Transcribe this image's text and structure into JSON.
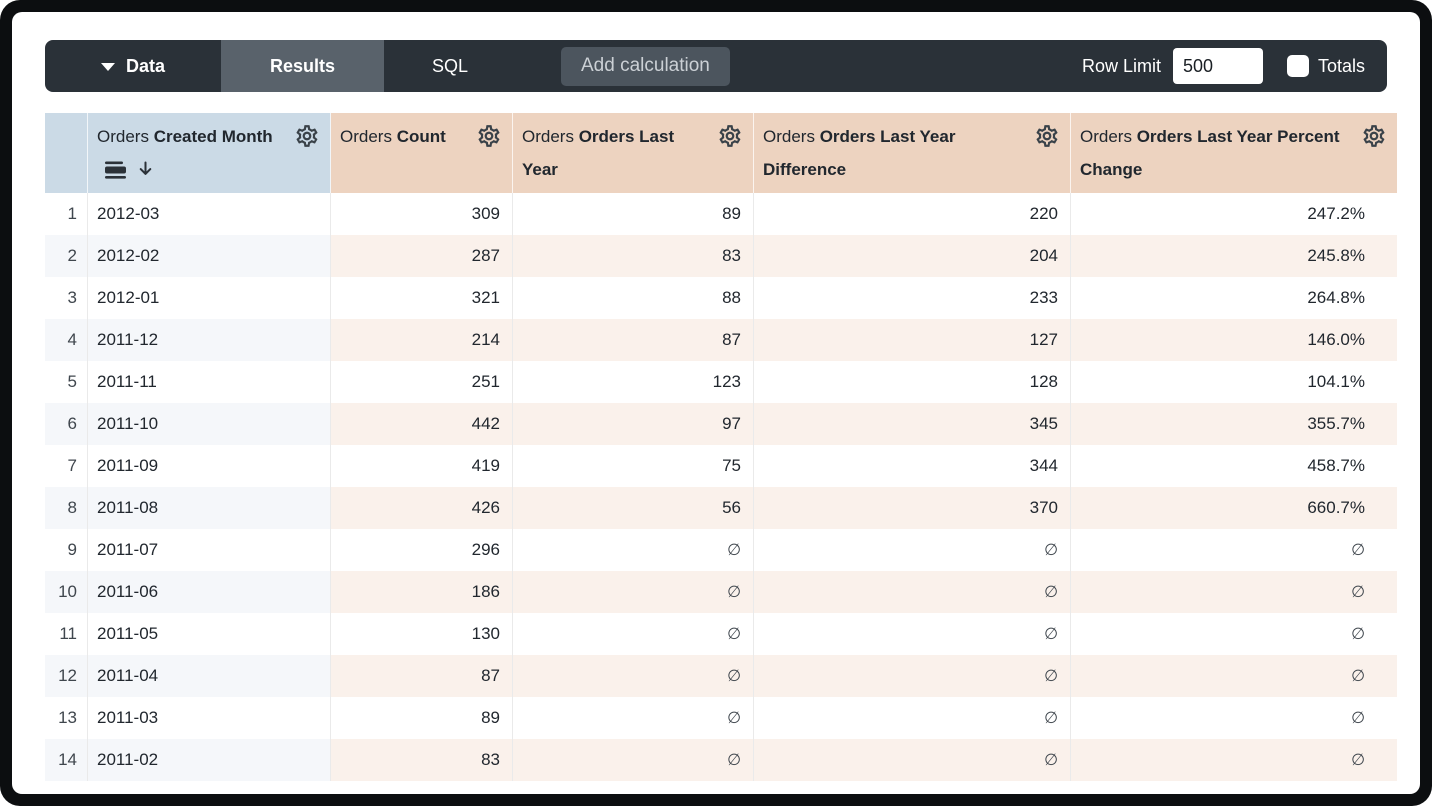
{
  "topbar": {
    "data_label": "Data",
    "results_label": "Results",
    "sql_label": "SQL",
    "add_calculation_label": "Add calculation",
    "row_limit_label": "Row Limit",
    "row_limit_value": "500",
    "totals_label": "Totals"
  },
  "table": {
    "null_symbol": "∅",
    "columns": [
      {
        "prefix": "Orders",
        "name": "Created Month",
        "type": "dimension",
        "sorted": "desc"
      },
      {
        "prefix": "Orders",
        "name": "Count",
        "type": "measure"
      },
      {
        "prefix": "Orders",
        "name": "Orders Last Year",
        "type": "measure"
      },
      {
        "prefix": "Orders",
        "name": "Orders Last Year Difference",
        "type": "measure"
      },
      {
        "prefix": "Orders",
        "name": "Orders Last Year Percent Change",
        "type": "measure"
      }
    ],
    "rows": [
      [
        "1",
        "2012-03",
        "309",
        "89",
        "220",
        "247.2%"
      ],
      [
        "2",
        "2012-02",
        "287",
        "83",
        "204",
        "245.8%"
      ],
      [
        "3",
        "2012-01",
        "321",
        "88",
        "233",
        "264.8%"
      ],
      [
        "4",
        "2011-12",
        "214",
        "87",
        "127",
        "146.0%"
      ],
      [
        "5",
        "2011-11",
        "251",
        "123",
        "128",
        "104.1%"
      ],
      [
        "6",
        "2011-10",
        "442",
        "97",
        "345",
        "355.7%"
      ],
      [
        "7",
        "2011-09",
        "419",
        "75",
        "344",
        "458.7%"
      ],
      [
        "8",
        "2011-08",
        "426",
        "56",
        "370",
        "660.7%"
      ],
      [
        "9",
        "2011-07",
        "296",
        "∅",
        "∅",
        "∅"
      ],
      [
        "10",
        "2011-06",
        "186",
        "∅",
        "∅",
        "∅"
      ],
      [
        "11",
        "2011-05",
        "130",
        "∅",
        "∅",
        "∅"
      ],
      [
        "12",
        "2011-04",
        "87",
        "∅",
        "∅",
        "∅"
      ],
      [
        "13",
        "2011-03",
        "89",
        "∅",
        "∅",
        "∅"
      ],
      [
        "14",
        "2011-02",
        "83",
        "∅",
        "∅",
        "∅"
      ]
    ]
  },
  "colors": {
    "frame-bg": "#0C0E10",
    "topbar-bg": "#2A3138",
    "results-tab-bg": "#59626B",
    "addcalc-bg": "#4C555E",
    "addcalc-text": "#CBD0D5",
    "header-dim-bg": "#CBDAE6",
    "header-measure-bg": "#EDD3C0",
    "stripe-dim-bg": "#F5F7FA",
    "stripe-measure-bg": "#FAF1EB",
    "text-dark": "#21272E",
    "muted-dark": "#3F464D"
  }
}
